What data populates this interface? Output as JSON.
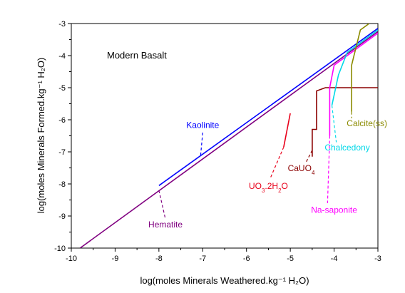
{
  "chart_data": {
    "type": "line",
    "title": "Modern Basalt",
    "xlabel": "log(moles Minerals Weathered.kg⁻¹ H₂O)",
    "ylabel": "log(moles Minerals Formed.kg⁻¹ H₂O)",
    "xlim": [
      -10,
      -3
    ],
    "ylim": [
      -10,
      -3
    ],
    "xticks": [
      "-10",
      "-9",
      "-8",
      "-7",
      "-6",
      "-5",
      "-4",
      "-3"
    ],
    "yticks": [
      "-10",
      "-9",
      "-8",
      "-7",
      "-6",
      "-5",
      "-4",
      "-3"
    ],
    "grid": false,
    "series": [
      {
        "name": "Hematite",
        "color": "#800080",
        "x": [
          -9.8,
          -3
        ],
        "y": [
          -10,
          -3.25
        ]
      },
      {
        "name": "Kaolinite",
        "color": "#0000ff",
        "x": [
          -8,
          -3
        ],
        "y": [
          -8.05,
          -3.15
        ]
      },
      {
        "name": "UO3.2H2O",
        "color": "#e8001a",
        "x": [
          -5.15,
          -5.0
        ],
        "y": [
          -6.85,
          -5.8
        ]
      },
      {
        "name": "CaUO4",
        "color": "#8b0000",
        "x": [
          -4.5,
          -4.5,
          -4.4,
          -4.4,
          -4.2,
          -3.5,
          -3
        ],
        "y": [
          -7.15,
          -6.3,
          -6.3,
          -5.1,
          -5.0,
          -5.0,
          -5.0
        ]
      },
      {
        "name": "Na-saponite",
        "color": "#ff00ff",
        "x": [
          -4.1,
          -4.1,
          -4.0,
          -3
        ],
        "y": [
          -6.5,
          -5.0,
          -4.3,
          -3.3
        ]
      },
      {
        "name": "Chalcedony",
        "color": "#00d8e8",
        "x": [
          -4.05,
          -3.9,
          -3.7,
          -3
        ],
        "y": [
          -5.55,
          -4.6,
          -3.9,
          -3.2
        ]
      },
      {
        "name": "Calcite(ss)",
        "color": "#8b8b00",
        "x": [
          -3.6,
          -3.6,
          -3.4,
          -3.2
        ],
        "y": [
          -5.75,
          -4.3,
          -3.2,
          -3.0
        ]
      }
    ],
    "annotations": [
      {
        "text": "Kaolinite",
        "color": "#0000ff",
        "x": -7.0,
        "y": -6.25,
        "leader": [
          [
            -7.0,
            -6.4
          ],
          [
            -7.05,
            -7.15
          ]
        ]
      },
      {
        "text": "Hematite",
        "color": "#800080",
        "x": -7.85,
        "y": -9.35,
        "leader": [
          [
            -8.0,
            -8.2
          ],
          [
            -7.85,
            -9.1
          ]
        ]
      },
      {
        "text": "UO",
        "sub1": "3",
        "mid": ".2H",
        "sub2": "2",
        "tail": "O",
        "color": "#e8001a",
        "x": -5.5,
        "y": -8.15,
        "leader": [
          [
            -5.15,
            -6.85
          ],
          [
            -5.45,
            -7.8
          ]
        ]
      },
      {
        "text": "CaUO",
        "sub1": "4",
        "color": "#8b0000",
        "x": -4.75,
        "y": -7.6,
        "leader": [
          [
            -4.5,
            -6.95
          ],
          [
            -4.65,
            -7.35
          ]
        ]
      },
      {
        "text": "Na-saponite",
        "color": "#ff00ff",
        "x": -4.0,
        "y": -8.9,
        "leader": [
          [
            -4.1,
            -6.5
          ],
          [
            -4.15,
            -8.6
          ]
        ]
      },
      {
        "text": "Chalcedony",
        "color": "#00d8e8",
        "x": -3.7,
        "y": -6.95,
        "leader": [
          [
            -4.05,
            -5.55
          ],
          [
            -3.95,
            -6.7
          ]
        ]
      },
      {
        "text": "Calcite(ss)",
        "color": "#8b8b00",
        "x": -3.25,
        "y": -6.2,
        "leader": [
          [
            -3.6,
            -5.75
          ],
          [
            -3.6,
            -5.95
          ]
        ]
      }
    ]
  }
}
